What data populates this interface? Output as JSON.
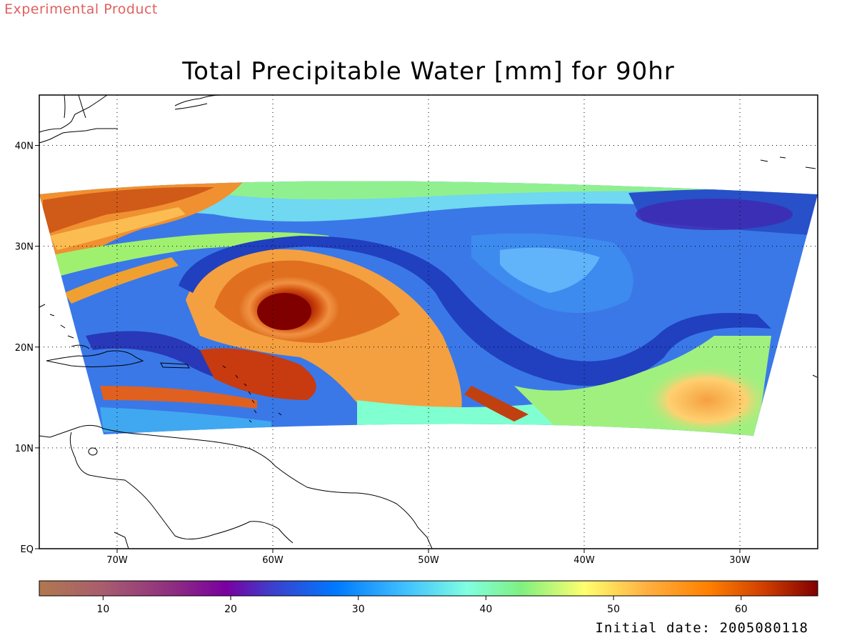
{
  "header": {
    "product_label": "Experimental Product",
    "title": "Total Precipitable Water [mm] for 90hr"
  },
  "footer": {
    "initial_date": "Initial date: 2005080118"
  },
  "map": {
    "lon_range": [
      -75,
      -25
    ],
    "lat_range": [
      0,
      45
    ],
    "x_ticks": [
      {
        "lon": -70,
        "label": "70W"
      },
      {
        "lon": -60,
        "label": "60W"
      },
      {
        "lon": -50,
        "label": "50W"
      },
      {
        "lon": -40,
        "label": "40W"
      },
      {
        "lon": -30,
        "label": "30W"
      }
    ],
    "y_ticks": [
      {
        "lat": 0,
        "label": "EQ"
      },
      {
        "lat": 10,
        "label": "10N"
      },
      {
        "lat": 20,
        "label": "20N"
      },
      {
        "lat": 30,
        "label": "30N"
      },
      {
        "lat": 40,
        "label": "40N"
      }
    ],
    "grid": "dotted"
  },
  "colorbar": {
    "range": [
      5,
      66
    ],
    "ticks": [
      {
        "value": 10,
        "label": "10"
      },
      {
        "value": 20,
        "label": "20"
      },
      {
        "value": 30,
        "label": "30"
      },
      {
        "value": 40,
        "label": "40"
      },
      {
        "value": 50,
        "label": "50"
      },
      {
        "value": 60,
        "label": "60"
      }
    ],
    "colors": [
      "#b07850",
      "#a85e6e",
      "#8e2f80",
      "#7a00a0",
      "#3c40cc",
      "#0078ff",
      "#40c0ff",
      "#80ffe0",
      "#80f080",
      "#ffff70",
      "#ffb040",
      "#ff8000",
      "#d04000",
      "#800000"
    ]
  }
}
